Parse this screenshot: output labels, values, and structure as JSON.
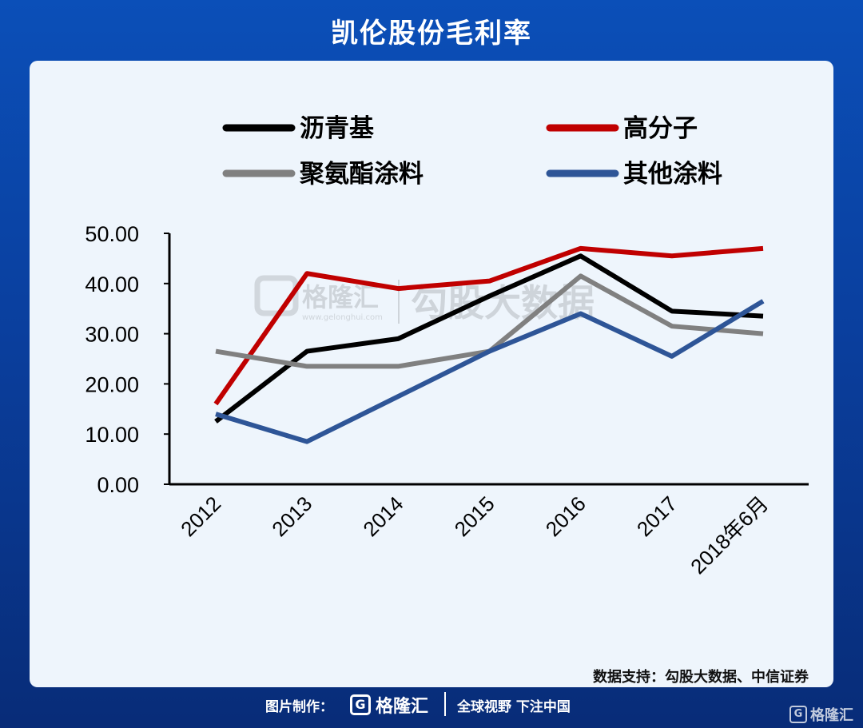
{
  "page": {
    "title": "凯伦股份毛利率",
    "source": "数据支持：勾股大数据、中信证券",
    "footer_label": "图片制作：",
    "footer_brand": "格隆汇",
    "footer_slogan": "全球视野 下注中国",
    "corner_mark": "格隆汇",
    "watermark_brand": "格隆汇",
    "watermark_url": "www.gelonghui.com",
    "watermark_text": "勾股大数据"
  },
  "chart_data": {
    "type": "line",
    "title": "",
    "xlabel": "",
    "ylabel": "",
    "categories": [
      "2012",
      "2013",
      "2014",
      "2015",
      "2016",
      "2017",
      "2018年6月"
    ],
    "yticks": [
      "0.00",
      "10.00",
      "20.00",
      "30.00",
      "40.00",
      "50.00"
    ],
    "ylim": [
      0,
      50
    ],
    "grid": false,
    "legend_position": "top",
    "series": [
      {
        "name": "沥青基",
        "color": "#000000",
        "values": [
          12.5,
          26.5,
          29,
          37.5,
          45.5,
          34.5,
          33.5
        ]
      },
      {
        "name": "高分子",
        "color": "#c00000",
        "values": [
          16,
          42,
          39,
          40.5,
          47,
          45.5,
          47
        ]
      },
      {
        "name": "聚氨酯涂料",
        "color": "#808080",
        "values": [
          26.5,
          23.5,
          23.5,
          26.5,
          41.5,
          31.5,
          30
        ]
      },
      {
        "name": "其他涂料",
        "color": "#2e5597",
        "values": [
          14,
          8.5,
          17.5,
          26.5,
          34,
          25.5,
          36.5
        ]
      }
    ]
  }
}
